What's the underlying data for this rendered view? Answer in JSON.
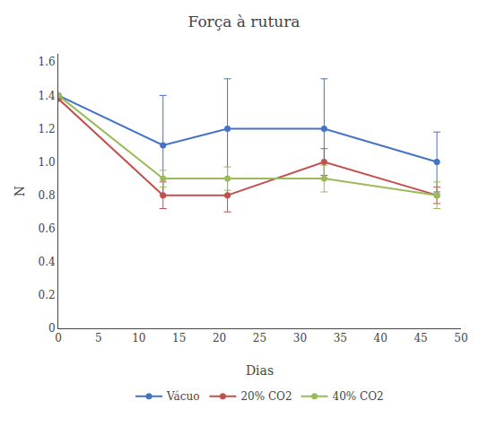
{
  "chart_data": {
    "type": "line",
    "title": "Força à rutura",
    "xlabel": "Dias",
    "ylabel": "N",
    "x": [
      0,
      13,
      21,
      33,
      47
    ],
    "series": [
      {
        "name": "Vácuo",
        "color": "#4472C4",
        "values": [
          1.4,
          1.1,
          1.2,
          1.2,
          1.0
        ],
        "errors": [
          0.0,
          0.3,
          0.3,
          0.3,
          0.18
        ]
      },
      {
        "name": "20% CO2",
        "color": "#C0504D",
        "values": [
          1.38,
          0.8,
          0.8,
          1.0,
          0.8
        ],
        "errors": [
          0.0,
          0.08,
          0.1,
          0.08,
          0.05
        ]
      },
      {
        "name": "40% CO2",
        "color": "#9BBB59",
        "values": [
          1.4,
          0.9,
          0.9,
          0.9,
          0.8
        ],
        "errors": [
          0.0,
          0.05,
          0.07,
          0.08,
          0.08
        ]
      }
    ],
    "xlim": [
      0,
      50
    ],
    "ylim": [
      0,
      1.65
    ],
    "xticks": [
      0,
      5,
      10,
      15,
      20,
      25,
      30,
      35,
      40,
      45,
      50
    ],
    "yticks": [
      0,
      0.2,
      0.4,
      0.6,
      0.8,
      {
        "value": 1.0,
        "label": "1.0"
      },
      1.2,
      1.4,
      1.6
    ],
    "marker": "circle",
    "grid": false,
    "legend": "bottom"
  }
}
